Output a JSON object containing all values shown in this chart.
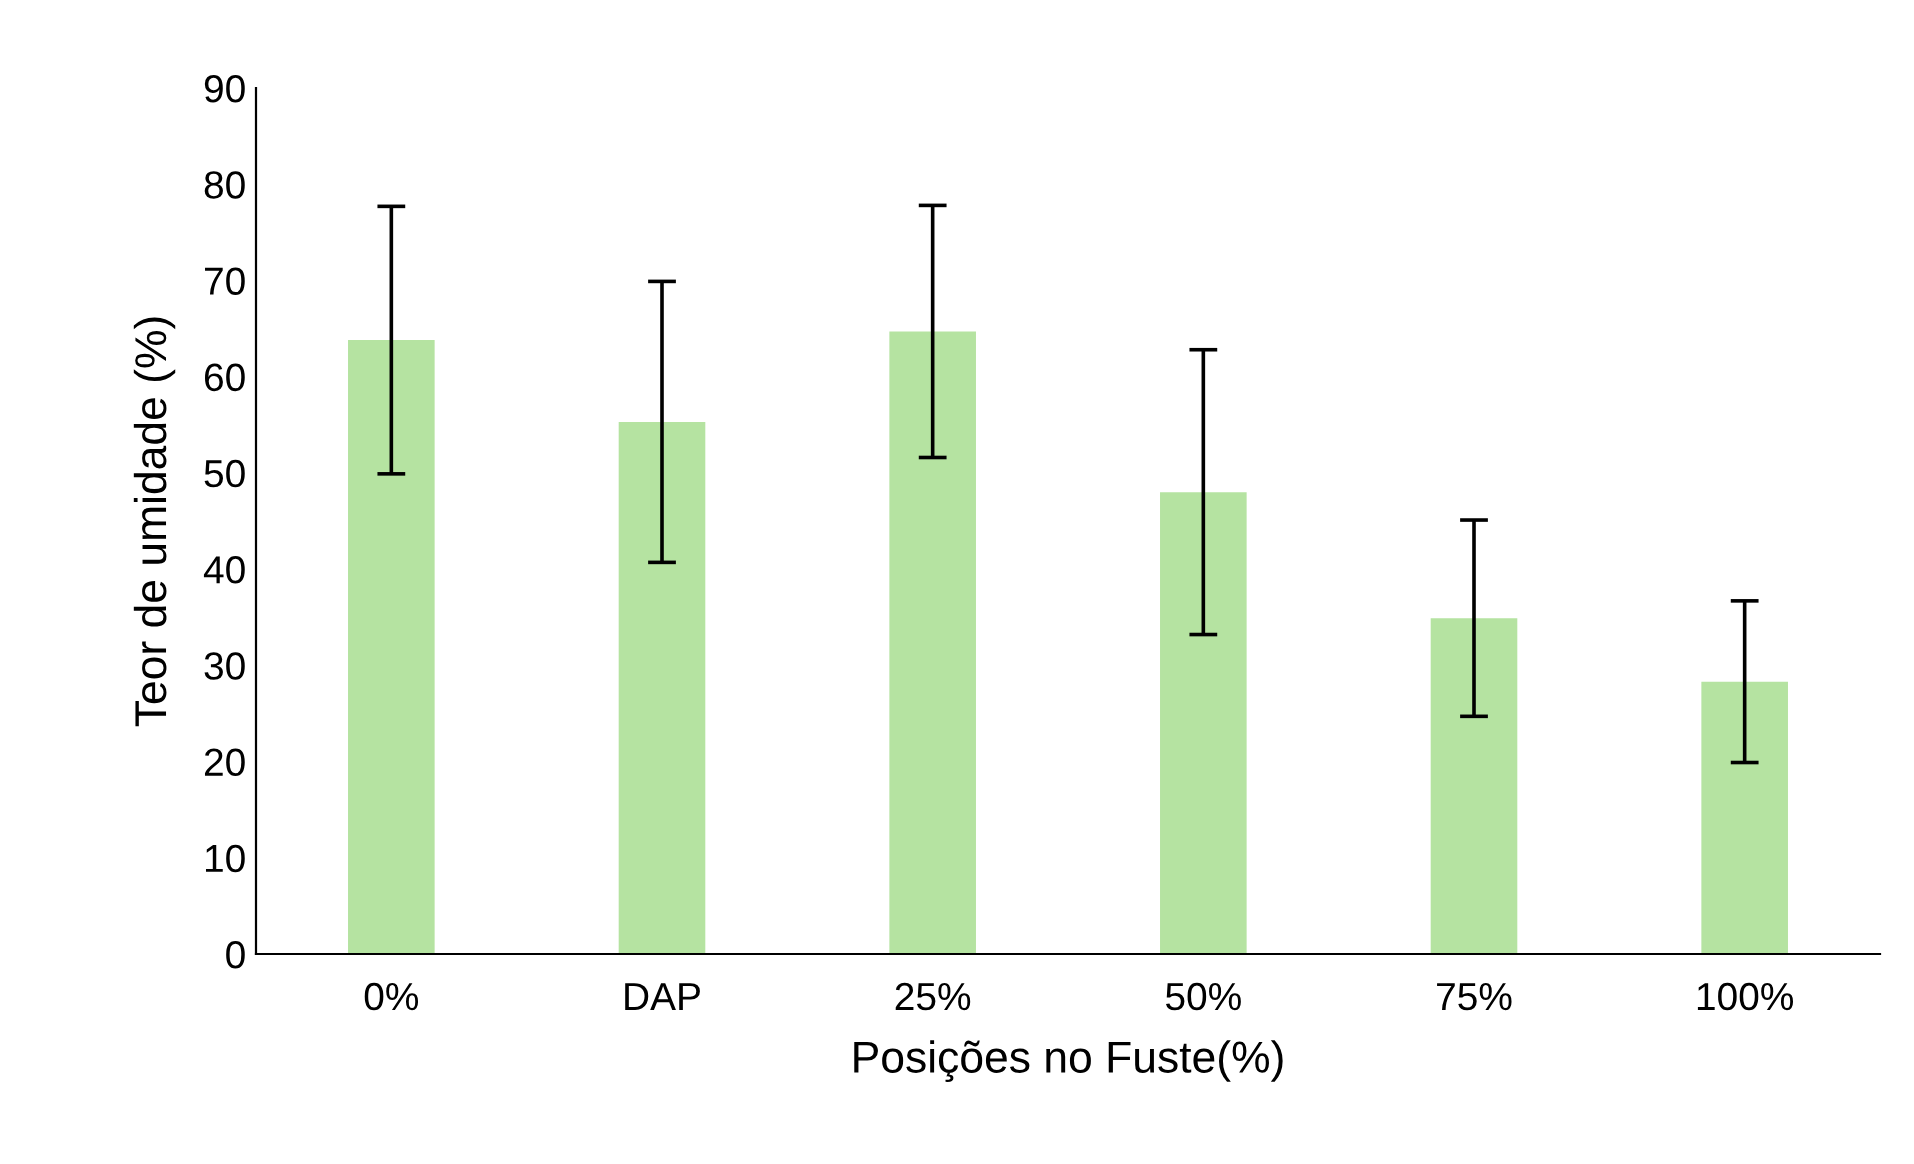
{
  "chart_data": {
    "type": "bar",
    "xlabel": "Posições no Fuste(%)",
    "ylabel": "Teor de umidade (%)",
    "categories": [
      "0%",
      "DAP",
      "25%",
      "50%",
      "75%",
      "100%"
    ],
    "values": [
      63.8,
      55.3,
      64.7,
      48.0,
      34.9,
      28.3
    ],
    "errors": [
      13.9,
      14.6,
      13.1,
      14.8,
      10.2,
      8.4
    ],
    "color": "#b5e3a1",
    "ylim": [
      0,
      90
    ],
    "yticks": [
      0,
      10,
      20,
      30,
      40,
      50,
      60,
      70,
      80,
      90
    ],
    "grid": false
  }
}
